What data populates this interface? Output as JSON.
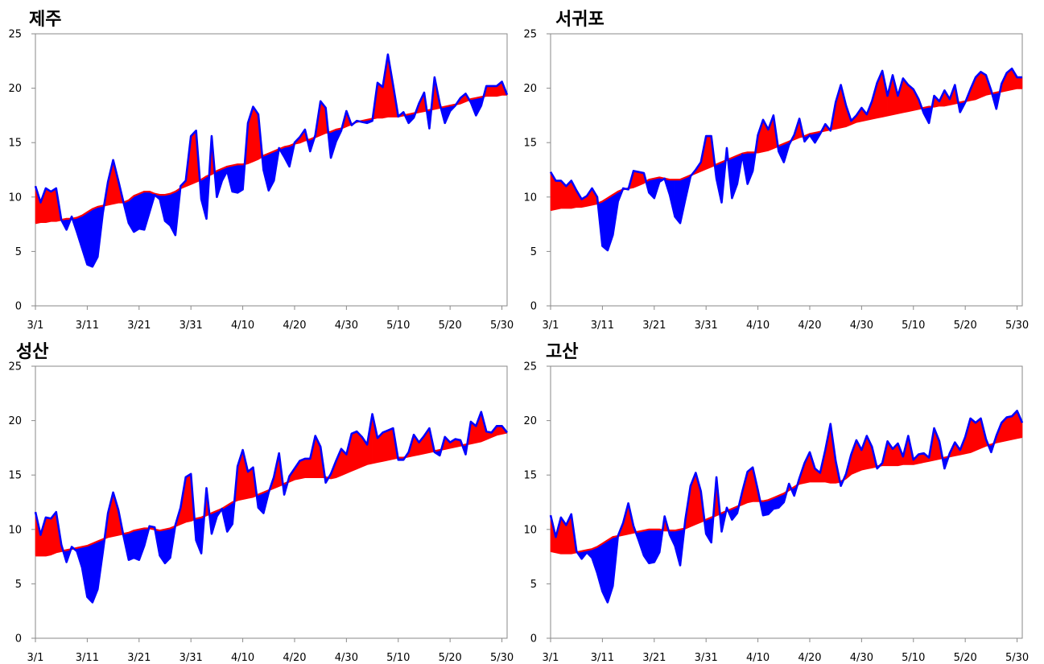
{
  "chart_data": [
    {
      "type": "area",
      "title": "제주",
      "xticks": [
        "3/1",
        "3/11",
        "3/21",
        "3/31",
        "4/10",
        "4/20",
        "4/30",
        "5/10",
        "5/20",
        "5/30"
      ],
      "ylim": [
        0,
        25
      ],
      "yticks": [
        0,
        5,
        10,
        15,
        20,
        25
      ],
      "grid": false,
      "colors": {
        "above_normal": "#ff0000",
        "below_normal": "#0000ff",
        "observed_line": "#0000ff",
        "normal_line": "#ff0000"
      },
      "normal": [
        7.6,
        7.7,
        7.7,
        7.8,
        7.8,
        7.9,
        8.0,
        8.0,
        8.1,
        8.3,
        8.6,
        8.9,
        9.1,
        9.2,
        9.3,
        9.4,
        9.5,
        9.5,
        9.7,
        10.1,
        10.3,
        10.5,
        10.5,
        10.3,
        10.2,
        10.2,
        10.3,
        10.5,
        10.8,
        11.0,
        11.2,
        11.4,
        11.6,
        11.9,
        12.1,
        12.4,
        12.6,
        12.8,
        12.9,
        13.0,
        13.0,
        13.1,
        13.3,
        13.5,
        13.8,
        14.0,
        14.2,
        14.4,
        14.6,
        14.7,
        14.9,
        15.0,
        15.2,
        15.3,
        15.5,
        15.7,
        15.9,
        16.0,
        16.2,
        16.3,
        16.5,
        16.7,
        16.9,
        17.0,
        17.1,
        17.2,
        17.3,
        17.3,
        17.4,
        17.4,
        17.4,
        17.5,
        17.6,
        17.7,
        17.8,
        17.9,
        18.0,
        18.1,
        18.2,
        18.3,
        18.4,
        18.5,
        18.6,
        18.8,
        19.0,
        19.1,
        19.2,
        19.3,
        19.3,
        19.3,
        19.4,
        19.4
      ],
      "observed": [
        11.0,
        9.5,
        10.8,
        10.5,
        10.8,
        7.9,
        7.0,
        8.2,
        6.8,
        5.3,
        3.8,
        3.6,
        4.5,
        8.5,
        11.4,
        13.4,
        11.5,
        9.5,
        7.6,
        6.8,
        7.1,
        7.0,
        8.6,
        10.2,
        9.8,
        7.8,
        7.4,
        6.5,
        11.0,
        11.5,
        15.6,
        16.1,
        9.8,
        8.0,
        15.6,
        10.0,
        11.5,
        12.4,
        10.5,
        10.4,
        10.7,
        16.8,
        18.3,
        17.6,
        12.5,
        10.6,
        11.5,
        14.5,
        13.7,
        12.8,
        15.0,
        15.5,
        16.2,
        14.2,
        15.7,
        18.8,
        18.2,
        13.6,
        15.1,
        16.1,
        17.9,
        16.6,
        17.0,
        16.9,
        16.8,
        17.0,
        20.5,
        20.1,
        23.1,
        20.3,
        17.4,
        17.8,
        16.8,
        17.3,
        18.6,
        19.6,
        16.3,
        21.0,
        18.6,
        16.8,
        17.9,
        18.4,
        19.1,
        19.5,
        18.7,
        17.5,
        18.4,
        20.2,
        20.2,
        20.2,
        20.6,
        19.4
      ]
    },
    {
      "type": "area",
      "title": "서귀포",
      "xticks": [
        "3/1",
        "3/11",
        "3/21",
        "3/31",
        "4/10",
        "4/20",
        "4/30",
        "5/10",
        "5/20",
        "5/30"
      ],
      "ylim": [
        0,
        25
      ],
      "yticks": [
        0,
        5,
        10,
        15,
        20,
        25
      ],
      "grid": false,
      "colors": {
        "above_normal": "#ff0000",
        "below_normal": "#0000ff",
        "observed_line": "#0000ff",
        "normal_line": "#ff0000"
      },
      "normal": [
        8.8,
        8.9,
        9.0,
        9.0,
        9.0,
        9.1,
        9.1,
        9.2,
        9.3,
        9.4,
        9.6,
        9.9,
        10.2,
        10.5,
        10.7,
        10.8,
        10.9,
        11.1,
        11.3,
        11.6,
        11.7,
        11.8,
        11.7,
        11.6,
        11.6,
        11.6,
        11.8,
        12.0,
        12.2,
        12.4,
        12.6,
        12.8,
        13.0,
        13.2,
        13.4,
        13.6,
        13.8,
        14.0,
        14.1,
        14.1,
        14.1,
        14.2,
        14.3,
        14.5,
        14.7,
        14.9,
        15.1,
        15.3,
        15.5,
        15.6,
        15.8,
        15.9,
        16.0,
        16.1,
        16.2,
        16.3,
        16.4,
        16.5,
        16.7,
        16.9,
        17.0,
        17.1,
        17.2,
        17.3,
        17.4,
        17.5,
        17.6,
        17.7,
        17.8,
        17.9,
        18.0,
        18.1,
        18.2,
        18.3,
        18.3,
        18.4,
        18.4,
        18.5,
        18.6,
        18.7,
        18.8,
        18.9,
        19.0,
        19.2,
        19.4,
        19.5,
        19.6,
        19.7,
        19.8,
        19.9,
        20.0,
        20.0
      ],
      "observed": [
        12.3,
        11.5,
        11.5,
        11.0,
        11.5,
        10.6,
        9.8,
        10.1,
        10.8,
        10.0,
        5.5,
        5.1,
        6.5,
        9.6,
        10.8,
        10.7,
        12.4,
        12.3,
        12.2,
        10.4,
        9.9,
        11.4,
        11.7,
        10.2,
        8.2,
        7.6,
        9.8,
        11.9,
        12.5,
        13.2,
        15.6,
        15.6,
        11.7,
        9.5,
        14.5,
        9.9,
        11.2,
        13.9,
        11.2,
        12.4,
        15.7,
        17.1,
        16.2,
        17.5,
        14.2,
        13.2,
        14.8,
        15.7,
        17.2,
        15.1,
        15.7,
        15.0,
        15.8,
        16.7,
        16.1,
        18.7,
        20.3,
        18.4,
        17.0,
        17.5,
        18.2,
        17.6,
        18.8,
        20.5,
        21.6,
        19.3,
        21.2,
        19.3,
        20.9,
        20.3,
        19.9,
        19.0,
        17.7,
        16.8,
        19.3,
        18.8,
        19.8,
        19.0,
        20.3,
        17.8,
        18.7,
        19.9,
        21.0,
        21.5,
        21.2,
        19.8,
        18.1,
        20.4,
        21.4,
        21.8,
        21.0,
        21.0
      ]
    },
    {
      "type": "area",
      "title": "성산",
      "xticks": [
        "3/1",
        "3/11",
        "3/21",
        "3/31",
        "4/10",
        "4/20",
        "4/30",
        "5/10",
        "5/20",
        "5/30"
      ],
      "ylim": [
        0,
        25
      ],
      "yticks": [
        0,
        5,
        10,
        15,
        20,
        25
      ],
      "grid": false,
      "colors": {
        "above_normal": "#ff0000",
        "below_normal": "#0000ff",
        "observed_line": "#0000ff",
        "normal_line": "#ff0000"
      },
      "normal": [
        7.6,
        7.6,
        7.6,
        7.7,
        7.9,
        8.0,
        8.1,
        8.2,
        8.3,
        8.4,
        8.5,
        8.7,
        8.9,
        9.1,
        9.3,
        9.4,
        9.5,
        9.6,
        9.7,
        9.9,
        10.0,
        10.1,
        10.1,
        10.0,
        9.9,
        10.0,
        10.1,
        10.3,
        10.5,
        10.7,
        10.8,
        11.0,
        11.1,
        11.3,
        11.5,
        11.7,
        11.9,
        12.2,
        12.5,
        12.7,
        12.8,
        12.9,
        13.0,
        13.2,
        13.4,
        13.6,
        13.8,
        14.0,
        14.2,
        14.4,
        14.6,
        14.7,
        14.8,
        14.8,
        14.8,
        14.8,
        14.8,
        14.7,
        14.8,
        15.0,
        15.2,
        15.4,
        15.6,
        15.8,
        16.0,
        16.1,
        16.2,
        16.3,
        16.4,
        16.5,
        16.6,
        16.6,
        16.7,
        16.8,
        16.9,
        17.0,
        17.1,
        17.2,
        17.3,
        17.4,
        17.5,
        17.6,
        17.7,
        17.8,
        17.9,
        18.0,
        18.1,
        18.3,
        18.5,
        18.7,
        18.8,
        18.9
      ],
      "observed": [
        11.6,
        9.5,
        11.1,
        11.0,
        11.6,
        8.6,
        7.0,
        8.4,
        8.0,
        6.5,
        3.8,
        3.3,
        4.5,
        7.9,
        11.5,
        13.4,
        11.8,
        9.4,
        7.2,
        7.4,
        7.2,
        8.5,
        10.3,
        10.2,
        7.6,
        6.9,
        7.4,
        10.4,
        12.0,
        14.8,
        15.1,
        9.0,
        7.8,
        13.8,
        9.6,
        11.2,
        11.9,
        9.8,
        10.5,
        15.8,
        17.3,
        15.3,
        15.7,
        12.0,
        11.5,
        13.4,
        14.8,
        17.0,
        13.2,
        14.9,
        15.6,
        16.3,
        16.5,
        16.5,
        18.6,
        17.6,
        14.3,
        15.1,
        16.3,
        17.4,
        16.9,
        18.8,
        19.0,
        18.5,
        17.8,
        20.6,
        18.4,
        18.9,
        19.1,
        19.3,
        16.4,
        16.4,
        17.1,
        18.7,
        18.0,
        18.6,
        19.3,
        17.1,
        16.8,
        18.5,
        18.0,
        18.3,
        18.2,
        16.9,
        19.9,
        19.5,
        20.8,
        19.0,
        18.9,
        19.5,
        19.5,
        18.9
      ]
    },
    {
      "type": "area",
      "title": "고산",
      "xticks": [
        "3/1",
        "3/11",
        "3/21",
        "3/31",
        "4/10",
        "4/20",
        "4/30",
        "5/10",
        "5/20",
        "5/30"
      ],
      "ylim": [
        0,
        25
      ],
      "yticks": [
        0,
        5,
        10,
        15,
        20,
        25
      ],
      "grid": false,
      "colors": {
        "above_normal": "#ff0000",
        "below_normal": "#0000ff",
        "observed_line": "#0000ff",
        "normal_line": "#ff0000"
      },
      "normal": [
        8.0,
        7.9,
        7.8,
        7.8,
        7.8,
        7.9,
        8.0,
        8.1,
        8.2,
        8.4,
        8.7,
        9.0,
        9.3,
        9.4,
        9.5,
        9.6,
        9.7,
        9.8,
        9.9,
        10.0,
        10.0,
        10.0,
        9.9,
        9.9,
        9.9,
        10.0,
        10.1,
        10.3,
        10.5,
        10.7,
        10.9,
        11.1,
        11.3,
        11.5,
        11.7,
        11.9,
        12.1,
        12.3,
        12.5,
        12.6,
        12.6,
        12.6,
        12.7,
        12.9,
        13.1,
        13.3,
        13.6,
        13.9,
        14.2,
        14.3,
        14.4,
        14.4,
        14.4,
        14.4,
        14.3,
        14.3,
        14.4,
        14.7,
        15.1,
        15.3,
        15.5,
        15.6,
        15.7,
        15.8,
        15.9,
        15.9,
        15.9,
        15.9,
        16.0,
        16.0,
        16.0,
        16.1,
        16.2,
        16.3,
        16.4,
        16.5,
        16.6,
        16.7,
        16.8,
        16.9,
        17.0,
        17.1,
        17.3,
        17.5,
        17.7,
        17.8,
        18.0,
        18.1,
        18.2,
        18.3,
        18.4,
        18.5
      ],
      "observed": [
        11.3,
        9.3,
        11.1,
        10.4,
        11.4,
        8.0,
        7.3,
        7.9,
        7.4,
        6.0,
        4.3,
        3.3,
        4.8,
        9.4,
        10.6,
        12.4,
        10.3,
        9.0,
        7.6,
        6.9,
        7.0,
        7.9,
        11.2,
        9.5,
        8.5,
        6.7,
        10.9,
        14.0,
        15.2,
        13.5,
        9.6,
        8.8,
        14.8,
        9.8,
        12.0,
        10.9,
        11.5,
        13.5,
        15.3,
        15.7,
        13.6,
        11.3,
        11.4,
        11.9,
        12.0,
        12.5,
        14.2,
        13.1,
        14.7,
        16.1,
        17.1,
        15.6,
        15.2,
        17.3,
        19.7,
        16.3,
        14.0,
        15.1,
        16.9,
        18.2,
        17.3,
        18.6,
        17.6,
        15.6,
        16.1,
        18.1,
        17.4,
        17.9,
        16.7,
        18.6,
        16.4,
        16.9,
        17.0,
        16.6,
        19.3,
        18.1,
        15.6,
        17.0,
        18.0,
        17.3,
        18.5,
        20.2,
        19.8,
        20.2,
        18.3,
        17.1,
        18.6,
        19.8,
        20.3,
        20.4,
        20.9,
        19.8
      ]
    }
  ]
}
